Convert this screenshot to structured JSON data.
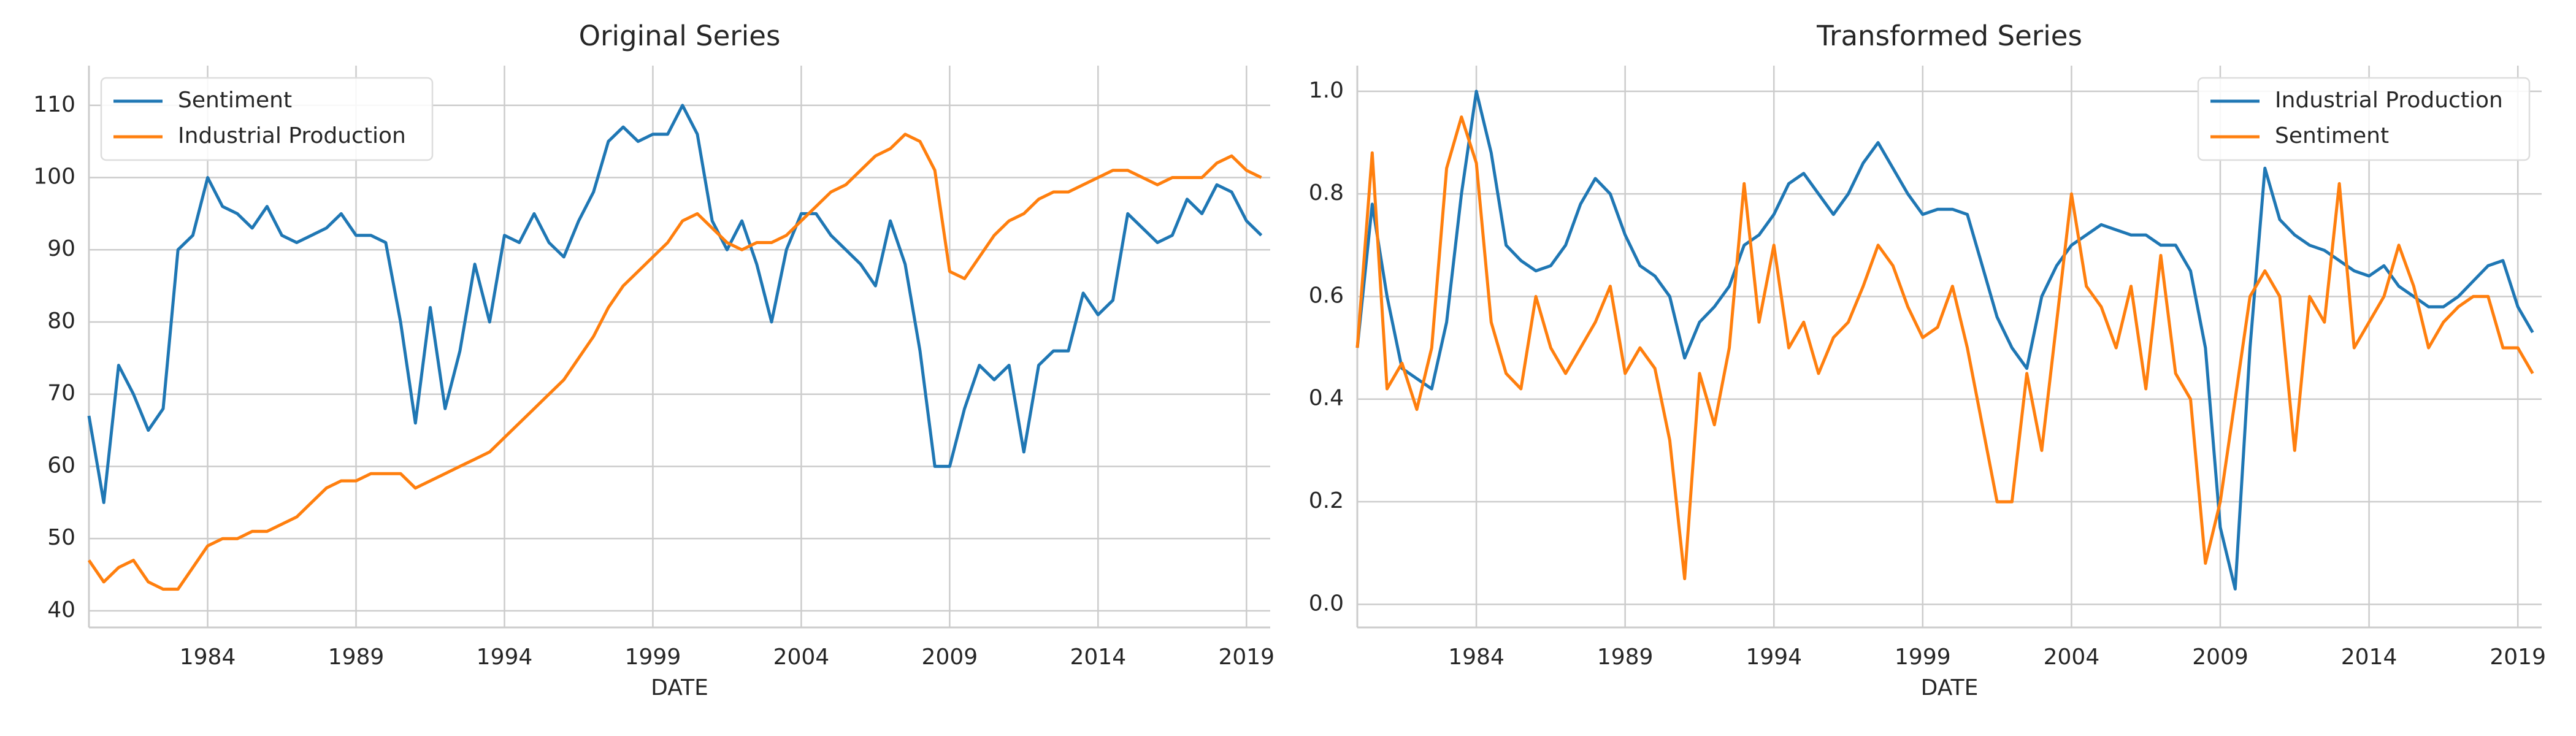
{
  "chart_data": [
    {
      "type": "line",
      "title": "Original Series",
      "xlabel": "DATE",
      "grid": true,
      "legend": "upper left",
      "xlim": [
        1980,
        2019.8
      ],
      "ylim": [
        37.7,
        115.5
      ],
      "xticks": [
        1984,
        1989,
        1994,
        1999,
        2004,
        2009,
        2014,
        2019
      ],
      "yticks": [
        40,
        50,
        60,
        70,
        80,
        90,
        100,
        110
      ],
      "x": [
        1980,
        1980.5,
        1981,
        1981.5,
        1982,
        1982.5,
        1983,
        1983.5,
        1984,
        1984.5,
        1985,
        1985.5,
        1986,
        1986.5,
        1987,
        1987.5,
        1988,
        1988.5,
        1989,
        1989.5,
        1990,
        1990.5,
        1991,
        1991.5,
        1992,
        1992.5,
        1993,
        1993.5,
        1994,
        1994.5,
        1995,
        1995.5,
        1996,
        1996.5,
        1997,
        1997.5,
        1998,
        1998.5,
        1999,
        1999.5,
        2000,
        2000.5,
        2001,
        2001.5,
        2002,
        2002.5,
        2003,
        2003.5,
        2004,
        2004.5,
        2005,
        2005.5,
        2006,
        2006.5,
        2007,
        2007.5,
        2008,
        2008.5,
        2009,
        2009.5,
        2010,
        2010.5,
        2011,
        2011.5,
        2012,
        2012.5,
        2013,
        2013.5,
        2014,
        2014.5,
        2015,
        2015.5,
        2016,
        2016.5,
        2017,
        2017.5,
        2018,
        2018.5,
        2019,
        2019.5
      ],
      "series": [
        {
          "name": "Sentiment",
          "color": "#1f77b4",
          "values": [
            67,
            55,
            74,
            70,
            65,
            68,
            90,
            92,
            100,
            96,
            95,
            93,
            96,
            92,
            91,
            92,
            93,
            95,
            92,
            92,
            91,
            80,
            66,
            82,
            68,
            76,
            88,
            80,
            92,
            91,
            95,
            91,
            89,
            94,
            98,
            105,
            107,
            105,
            106,
            106,
            110,
            106,
            94,
            90,
            94,
            88,
            80,
            90,
            95,
            95,
            92,
            90,
            88,
            85,
            94,
            88,
            76,
            60,
            60,
            68,
            74,
            72,
            74,
            62,
            74,
            76,
            76,
            84,
            81,
            83,
            95,
            93,
            91,
            92,
            97,
            95,
            99,
            98,
            94,
            92
          ]
        },
        {
          "name": "Industrial Production",
          "color": "#ff7f0e",
          "values": [
            47,
            44,
            46,
            47,
            44,
            43,
            43,
            46,
            49,
            50,
            50,
            51,
            51,
            52,
            53,
            55,
            57,
            58,
            58,
            59,
            59,
            59,
            57,
            58,
            59,
            60,
            61,
            62,
            64,
            66,
            68,
            70,
            72,
            75,
            78,
            82,
            85,
            87,
            89,
            91,
            94,
            95,
            93,
            91,
            90,
            91,
            91,
            92,
            94,
            96,
            98,
            99,
            101,
            103,
            104,
            106,
            105,
            101,
            87,
            86,
            89,
            92,
            94,
            95,
            97,
            98,
            98,
            99,
            100,
            101,
            101,
            100,
            99,
            100,
            100,
            100,
            102,
            103,
            101,
            100
          ]
        }
      ]
    },
    {
      "type": "line",
      "title": "Transformed Series",
      "xlabel": "DATE",
      "grid": true,
      "legend": "upper right",
      "xlim": [
        1980,
        2019.8
      ],
      "ylim": [
        -0.045,
        1.05
      ],
      "xticks": [
        1984,
        1989,
        1994,
        1999,
        2004,
        2009,
        2014,
        2019
      ],
      "yticks": [
        {
          "value": 0,
          "label": "0.0"
        },
        0.2,
        0.4,
        0.6,
        0.8,
        {
          "value": 1,
          "label": "1.0"
        }
      ],
      "x": [
        1980,
        1980.5,
        1981,
        1981.5,
        1982,
        1982.5,
        1983,
        1983.5,
        1984,
        1984.5,
        1985,
        1985.5,
        1986,
        1986.5,
        1987,
        1987.5,
        1988,
        1988.5,
        1989,
        1989.5,
        1990,
        1990.5,
        1991,
        1991.5,
        1992,
        1992.5,
        1993,
        1993.5,
        1994,
        1994.5,
        1995,
        1995.5,
        1996,
        1996.5,
        1997,
        1997.5,
        1998,
        1998.5,
        1999,
        1999.5,
        2000,
        2000.5,
        2001,
        2001.5,
        2002,
        2002.5,
        2003,
        2003.5,
        2004,
        2004.5,
        2005,
        2005.5,
        2006,
        2006.5,
        2007,
        2007.5,
        2008,
        2008.5,
        2009,
        2009.5,
        2010,
        2010.5,
        2011,
        2011.5,
        2012,
        2012.5,
        2013,
        2013.5,
        2014,
        2014.5,
        2015,
        2015.5,
        2016,
        2016.5,
        2017,
        2017.5,
        2018,
        2018.5,
        2019,
        2019.5
      ],
      "series": [
        {
          "name": "Industrial Production",
          "color": "#1f77b4",
          "values": [
            0.5,
            0.78,
            0.6,
            0.46,
            0.44,
            0.42,
            0.55,
            0.8,
            1.0,
            0.88,
            0.7,
            0.67,
            0.65,
            0.66,
            0.7,
            0.78,
            0.83,
            0.8,
            0.72,
            0.66,
            0.64,
            0.6,
            0.48,
            0.55,
            0.58,
            0.62,
            0.7,
            0.72,
            0.76,
            0.82,
            0.84,
            0.8,
            0.76,
            0.8,
            0.86,
            0.9,
            0.85,
            0.8,
            0.76,
            0.77,
            0.77,
            0.76,
            0.66,
            0.56,
            0.5,
            0.46,
            0.6,
            0.66,
            0.7,
            0.72,
            0.74,
            0.73,
            0.72,
            0.72,
            0.7,
            0.7,
            0.65,
            0.5,
            0.15,
            0.03,
            0.5,
            0.85,
            0.75,
            0.72,
            0.7,
            0.69,
            0.67,
            0.65,
            0.64,
            0.66,
            0.62,
            0.6,
            0.58,
            0.58,
            0.6,
            0.63,
            0.66,
            0.67,
            0.58,
            0.53
          ]
        },
        {
          "name": "Sentiment",
          "color": "#ff7f0e",
          "values": [
            0.5,
            0.88,
            0.42,
            0.47,
            0.38,
            0.5,
            0.85,
            0.95,
            0.86,
            0.55,
            0.45,
            0.42,
            0.6,
            0.5,
            0.45,
            0.5,
            0.55,
            0.62,
            0.45,
            0.5,
            0.46,
            0.32,
            0.05,
            0.45,
            0.35,
            0.5,
            0.82,
            0.55,
            0.7,
            0.5,
            0.55,
            0.45,
            0.52,
            0.55,
            0.62,
            0.7,
            0.66,
            0.58,
            0.52,
            0.54,
            0.62,
            0.5,
            0.35,
            0.2,
            0.2,
            0.45,
            0.3,
            0.55,
            0.8,
            0.62,
            0.58,
            0.5,
            0.62,
            0.42,
            0.68,
            0.45,
            0.4,
            0.08,
            0.2,
            0.4,
            0.6,
            0.65,
            0.6,
            0.3,
            0.6,
            0.55,
            0.82,
            0.5,
            0.55,
            0.6,
            0.7,
            0.62,
            0.5,
            0.55,
            0.58,
            0.6,
            0.6,
            0.5,
            0.5,
            0.45
          ]
        }
      ]
    }
  ]
}
